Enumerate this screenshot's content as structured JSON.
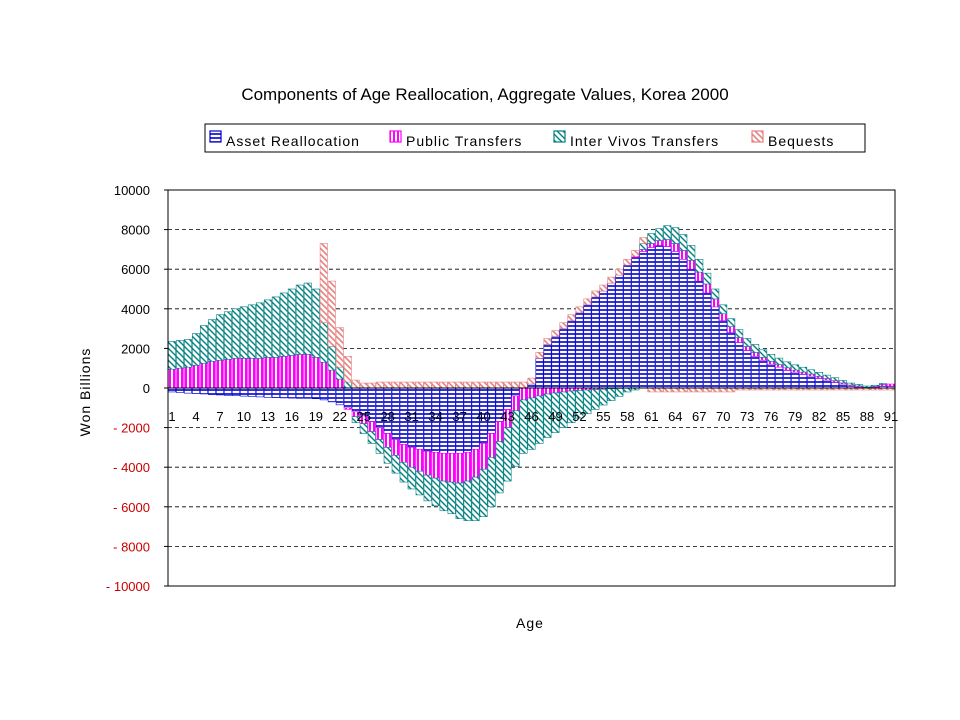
{
  "chart_data": {
    "type": "bar",
    "stacked": true,
    "title": "Components of Age Reallocation, Aggregate Values, Korea 2000",
    "xlabel": "Age",
    "ylabel": "Won Billions",
    "ylim": [
      -10000,
      10000
    ],
    "yticks": [
      10000,
      8000,
      6000,
      4000,
      2000,
      0,
      -2000,
      -4000,
      -6000,
      -8000,
      -10000
    ],
    "ytick_labels": [
      "10000",
      "8000",
      "6000",
      "4000",
      "2000",
      "0",
      "- 2000",
      "- 4000",
      "- 6000",
      "- 8000",
      "- 10000"
    ],
    "positive_tick_color": "#000000",
    "negative_tick_color": "#cc0000",
    "xtick_labels": [
      "1",
      "4",
      "7",
      "10",
      "13",
      "16",
      "19",
      "22",
      "25",
      "28",
      "31",
      "34",
      "37",
      "40",
      "43",
      "46",
      "49",
      "52",
      "55",
      "58",
      "61",
      "64",
      "67",
      "70",
      "73",
      "76",
      "79",
      "82",
      "85",
      "88",
      "91"
    ],
    "grid": "horizontal dashed",
    "legend_position": "top",
    "categories": [
      1,
      2,
      3,
      4,
      5,
      6,
      7,
      8,
      9,
      10,
      11,
      12,
      13,
      14,
      15,
      16,
      17,
      18,
      19,
      20,
      21,
      22,
      23,
      24,
      25,
      26,
      27,
      28,
      29,
      30,
      31,
      32,
      33,
      34,
      35,
      36,
      37,
      38,
      39,
      40,
      41,
      42,
      43,
      44,
      45,
      46,
      47,
      48,
      49,
      50,
      51,
      52,
      53,
      54,
      55,
      56,
      57,
      58,
      59,
      60,
      61,
      62,
      63,
      64,
      65,
      66,
      67,
      68,
      69,
      70,
      71,
      72,
      73,
      74,
      75,
      76,
      77,
      78,
      79,
      80,
      81,
      82,
      83,
      84,
      85,
      86,
      87,
      88,
      89,
      90,
      91
    ],
    "series": [
      {
        "name": "Asset Reallocation",
        "color": "#0000cc",
        "fill": "#ffffff",
        "pattern": "horizontal",
        "values": [
          -200,
          -230,
          -260,
          -280,
          -300,
          -330,
          -350,
          -370,
          -390,
          -410,
          -430,
          -450,
          -470,
          -490,
          -500,
          -510,
          -520,
          -520,
          -540,
          -600,
          -700,
          -850,
          -1000,
          -1200,
          -1400,
          -1700,
          -2000,
          -2300,
          -2600,
          -2850,
          -3000,
          -3100,
          -3200,
          -3250,
          -3300,
          -3300,
          -3300,
          -3250,
          -3100,
          -2800,
          -2300,
          -1700,
          -1100,
          -400,
          0,
          200,
          1500,
          2200,
          2600,
          3000,
          3400,
          3800,
          4200,
          4600,
          4900,
          5300,
          5700,
          6200,
          6600,
          6900,
          7100,
          7200,
          7150,
          6900,
          6500,
          6000,
          5400,
          4800,
          4100,
          3400,
          2800,
          2300,
          1900,
          1600,
          1400,
          1200,
          1050,
          900,
          800,
          700,
          600,
          500,
          400,
          300,
          200,
          100,
          50,
          0,
          50,
          100,
          100
        ]
      },
      {
        "name": "Public Transfers",
        "color": "#ff00ff",
        "fill": "#ffffff",
        "pattern": "vertical",
        "values": [
          950,
          1000,
          1050,
          1150,
          1250,
          1350,
          1400,
          1450,
          1500,
          1500,
          1500,
          1500,
          1550,
          1550,
          1600,
          1650,
          1700,
          1700,
          1550,
          1300,
          900,
          450,
          -80,
          -250,
          -400,
          -500,
          -600,
          -700,
          -800,
          -900,
          -1000,
          -1100,
          -1200,
          -1300,
          -1400,
          -1450,
          -1500,
          -1450,
          -1400,
          -1300,
          -1200,
          -1000,
          -900,
          -750,
          -600,
          -500,
          -400,
          -300,
          -250,
          -200,
          -150,
          -120,
          -100,
          -80,
          -60,
          -40,
          -20,
          0,
          50,
          100,
          200,
          250,
          350,
          400,
          450,
          450,
          450,
          450,
          400,
          350,
          300,
          250,
          200,
          200,
          150,
          150,
          130,
          120,
          100,
          100,
          100,
          90,
          80,
          70,
          60,
          50,
          50,
          40,
          40,
          80,
          100
        ]
      },
      {
        "name": "Inter Vivos Transfers",
        "color": "#008080",
        "fill": "#ffffff",
        "pattern": "diagonal",
        "values": [
          1400,
          1400,
          1400,
          1600,
          1900,
          2100,
          2300,
          2400,
          2500,
          2600,
          2700,
          2800,
          2900,
          3050,
          3200,
          3350,
          3500,
          3600,
          3450,
          2000,
          1200,
          600,
          300,
          -300,
          -500,
          -600,
          -700,
          -800,
          -900,
          -1000,
          -1100,
          -1200,
          -1300,
          -1400,
          -1500,
          -1600,
          -1800,
          -2000,
          -2200,
          -2400,
          -2500,
          -2600,
          -2700,
          -2800,
          -2700,
          -2600,
          -2400,
          -2200,
          -2000,
          -1800,
          -1600,
          -1400,
          -1200,
          -1000,
          -800,
          -600,
          -400,
          -200,
          -100,
          300,
          500,
          600,
          700,
          800,
          800,
          750,
          650,
          550,
          500,
          450,
          400,
          400,
          400,
          400,
          380,
          350,
          330,
          300,
          270,
          250,
          220,
          200,
          170,
          150,
          120,
          100,
          80,
          60,
          50,
          50,
          0
        ]
      },
      {
        "name": "Bequests",
        "color": "#e88080",
        "fill": "#ffffff",
        "pattern": "diagonal-light",
        "values": [
          0,
          0,
          0,
          0,
          0,
          0,
          0,
          0,
          0,
          0,
          0,
          0,
          0,
          0,
          0,
          0,
          0,
          0,
          0,
          4000,
          3300,
          2000,
          1300,
          400,
          250,
          250,
          300,
          300,
          300,
          300,
          300,
          300,
          300,
          300,
          300,
          300,
          300,
          300,
          300,
          300,
          300,
          300,
          300,
          300,
          300,
          300,
          300,
          300,
          300,
          300,
          300,
          300,
          300,
          300,
          300,
          300,
          300,
          300,
          300,
          300,
          -200,
          -200,
          -200,
          -200,
          -200,
          -200,
          -200,
          -200,
          -200,
          -200,
          -200,
          -100,
          -100,
          -100,
          -100,
          -100,
          -100,
          -100,
          -100,
          -100,
          -100,
          -100,
          -100,
          -100,
          -100,
          -100,
          -100,
          -100,
          -100,
          -100,
          -100
        ]
      }
    ]
  }
}
